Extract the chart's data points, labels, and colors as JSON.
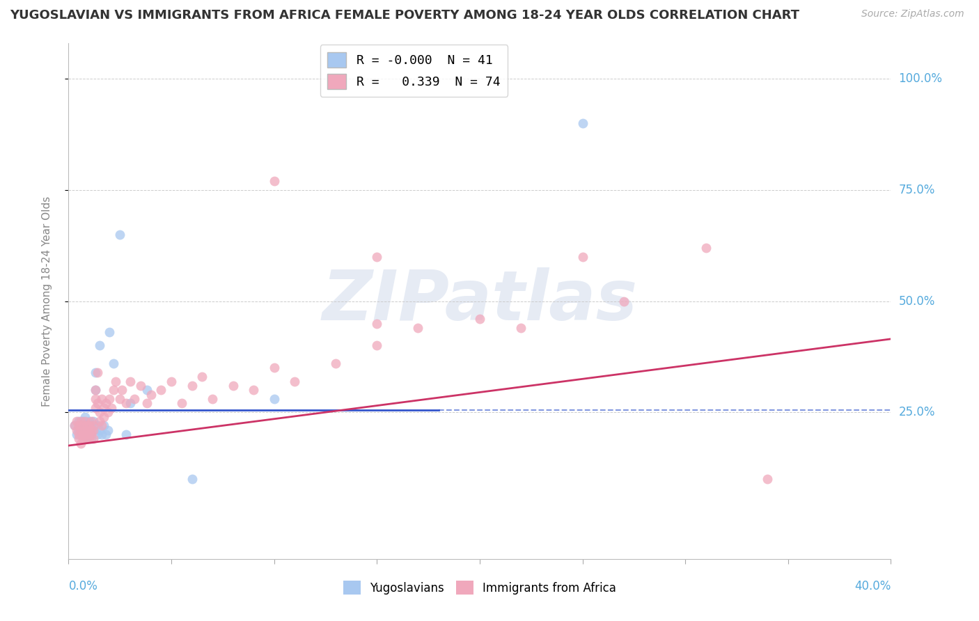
{
  "title": "YUGOSLAVIAN VS IMMIGRANTS FROM AFRICA FEMALE POVERTY AMONG 18-24 YEAR OLDS CORRELATION CHART",
  "source": "Source: ZipAtlas.com",
  "ylabel": "Female Poverty Among 18-24 Year Olds",
  "xlim": [
    0.0,
    0.4
  ],
  "ylim": [
    -0.08,
    1.08
  ],
  "color_blue": "#a8c8f0",
  "color_pink": "#f0a8bc",
  "color_blue_line": "#3355cc",
  "color_pink_line": "#cc3366",
  "color_axis_labels": "#55aadd",
  "background_color": "#ffffff",
  "grid_color": "#cccccc",
  "watermark_text": "ZIPatlas",
  "watermark_color": "#c8d4e8",
  "legend1_r1": "R = -0.000  N = 41",
  "legend1_r2": "R =   0.339  N = 74",
  "legend2_labels": [
    "Yugoslavians",
    "Immigrants from Africa"
  ],
  "yugoslav_x": [
    0.003,
    0.004,
    0.005,
    0.005,
    0.006,
    0.006,
    0.007,
    0.007,
    0.007,
    0.008,
    0.008,
    0.008,
    0.009,
    0.009,
    0.009,
    0.01,
    0.01,
    0.01,
    0.011,
    0.011,
    0.012,
    0.012,
    0.013,
    0.013,
    0.014,
    0.014,
    0.015,
    0.015,
    0.016,
    0.017,
    0.018,
    0.019,
    0.02,
    0.022,
    0.025,
    0.028,
    0.03,
    0.038,
    0.06,
    0.1,
    0.25
  ],
  "yugoslav_y": [
    0.22,
    0.2,
    0.21,
    0.23,
    0.2,
    0.22,
    0.21,
    0.23,
    0.2,
    0.21,
    0.22,
    0.24,
    0.2,
    0.22,
    0.19,
    0.21,
    0.23,
    0.2,
    0.22,
    0.19,
    0.21,
    0.23,
    0.3,
    0.34,
    0.2,
    0.22,
    0.4,
    0.21,
    0.2,
    0.22,
    0.2,
    0.21,
    0.43,
    0.36,
    0.65,
    0.2,
    0.27,
    0.3,
    0.1,
    0.28,
    0.9
  ],
  "africa_x": [
    0.003,
    0.004,
    0.004,
    0.005,
    0.005,
    0.005,
    0.006,
    0.006,
    0.006,
    0.007,
    0.007,
    0.007,
    0.008,
    0.008,
    0.008,
    0.009,
    0.009,
    0.009,
    0.01,
    0.01,
    0.01,
    0.011,
    0.011,
    0.011,
    0.012,
    0.012,
    0.012,
    0.013,
    0.013,
    0.013,
    0.014,
    0.014,
    0.015,
    0.015,
    0.016,
    0.016,
    0.017,
    0.017,
    0.018,
    0.019,
    0.02,
    0.021,
    0.022,
    0.023,
    0.025,
    0.026,
    0.028,
    0.03,
    0.032,
    0.035,
    0.038,
    0.04,
    0.045,
    0.05,
    0.055,
    0.06,
    0.065,
    0.07,
    0.08,
    0.09,
    0.1,
    0.11,
    0.13,
    0.15,
    0.17,
    0.2,
    0.22,
    0.25,
    0.27,
    0.31,
    0.1,
    0.15,
    0.34,
    0.15
  ],
  "africa_y": [
    0.22,
    0.21,
    0.23,
    0.2,
    0.22,
    0.19,
    0.21,
    0.23,
    0.18,
    0.2,
    0.22,
    0.19,
    0.21,
    0.23,
    0.2,
    0.22,
    0.19,
    0.21,
    0.22,
    0.2,
    0.19,
    0.21,
    0.23,
    0.2,
    0.22,
    0.19,
    0.21,
    0.3,
    0.28,
    0.26,
    0.34,
    0.27,
    0.23,
    0.25,
    0.22,
    0.28,
    0.24,
    0.26,
    0.27,
    0.25,
    0.28,
    0.26,
    0.3,
    0.32,
    0.28,
    0.3,
    0.27,
    0.32,
    0.28,
    0.31,
    0.27,
    0.29,
    0.3,
    0.32,
    0.27,
    0.31,
    0.33,
    0.28,
    0.31,
    0.3,
    0.35,
    0.32,
    0.36,
    0.4,
    0.44,
    0.46,
    0.44,
    0.6,
    0.5,
    0.62,
    0.77,
    0.45,
    0.1,
    0.6
  ],
  "blue_line": [
    [
      0.0,
      0.4
    ],
    [
      0.255,
      0.255
    ]
  ],
  "pink_line": [
    [
      0.0,
      0.4
    ],
    [
      0.175,
      0.415
    ]
  ],
  "blue_line_solid_end": 0.18,
  "ytick_positions": [
    0.25,
    0.5,
    0.75,
    1.0
  ],
  "ytick_labels": [
    "25.0%",
    "50.0%",
    "75.0%",
    "100.0%"
  ]
}
